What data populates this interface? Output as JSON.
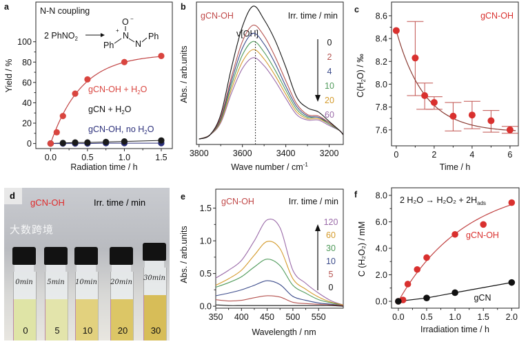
{
  "chart_data": [
    {
      "panel": "a",
      "type": "scatter",
      "title": "N-N coupling",
      "reaction": {
        "reactant": "2 PhNO",
        "reactant_sub": "2",
        "product_top": "O",
        "product_charge": "−",
        "product_plus": "+",
        "product_n1": "N",
        "product_n2": "N",
        "product_ph1": "Ph",
        "product_ph2": "Ph"
      },
      "xlabel": "Radiation time / h",
      "ylabel": "Yield / %",
      "xlim": [
        -0.2,
        1.65
      ],
      "ylim": [
        -5,
        139
      ],
      "xticks": [
        0,
        0.5,
        1.0,
        1.5
      ],
      "xtick_labels": [
        "0.0",
        "0.5",
        "1.0",
        "1.5"
      ],
      "yticks": [
        0,
        20,
        40,
        60,
        80,
        100
      ],
      "ytick_labels": [
        "0",
        "20",
        "40",
        "60",
        "80",
        "100"
      ],
      "series": [
        {
          "name": "gCN-OH + H2O",
          "label": "gCN-OH + H",
          "label_sub": "2",
          "label_end": "O",
          "color": "#d9453f",
          "x": [
            0,
            0.083,
            0.167,
            0.333,
            0.5,
            1.0,
            1.5
          ],
          "y": [
            0,
            11,
            27,
            49,
            63,
            80,
            86
          ],
          "fit": {
            "type": "exp_rise",
            "A": 88,
            "tau": 0.42
          }
        },
        {
          "name": "gCN + H2O",
          "label": "gCN + H",
          "label_sub": "2",
          "label_end": "O",
          "color": "#1a1a1a",
          "x": [
            0,
            0.167,
            0.333,
            0.5,
            0.75,
            1.0,
            1.5
          ],
          "y": [
            0,
            0.5,
            1,
            1,
            1.5,
            2,
            3
          ]
        },
        {
          "name": "gCN-OH, no H2O",
          "label": "gCN-OH, no H",
          "label_sub": "2",
          "label_end": "O",
          "color": "#2b2f7a",
          "x": [
            0,
            0.167,
            0.333,
            0.5,
            0.75,
            1.0,
            1.5
          ],
          "y": [
            0,
            0,
            0,
            0,
            0.3,
            0.3,
            0.3
          ]
        }
      ]
    },
    {
      "panel": "b",
      "type": "line",
      "sample": "gCN-OH",
      "legend_title": "Irr. time / min",
      "annotation": "ν[OH]",
      "xlabel": "Wave number / cm",
      "xlabel_sup": "-1",
      "ylabel": "Abs. / arb.units",
      "xlim": [
        3812,
        3135
      ],
      "ylim": [
        -0.02,
        1.03
      ],
      "xticks": [
        3800,
        3600,
        3400,
        3200
      ],
      "xtick_labels": [
        "3800",
        "3600",
        "3400",
        "3200"
      ],
      "peak_x": 3540,
      "x": [
        3800,
        3750,
        3700,
        3650,
        3600,
        3550,
        3500,
        3450,
        3400,
        3350,
        3300,
        3250,
        3200,
        3150,
        3100
      ],
      "series": [
        {
          "name": "0",
          "color": "#111111",
          "y": [
            0.02,
            0.05,
            0.2,
            0.55,
            0.85,
            1.0,
            0.9,
            0.75,
            0.55,
            0.33,
            0.25,
            0.22,
            0.15,
            0.08,
            0.05
          ]
        },
        {
          "name": "2",
          "color": "#b5524f",
          "y": [
            0.02,
            0.05,
            0.18,
            0.48,
            0.74,
            0.86,
            0.78,
            0.63,
            0.45,
            0.28,
            0.2,
            0.19,
            0.14,
            0.08,
            0.05
          ]
        },
        {
          "name": "4",
          "color": "#3a4a8a",
          "y": [
            0.02,
            0.05,
            0.17,
            0.45,
            0.69,
            0.8,
            0.72,
            0.58,
            0.41,
            0.26,
            0.19,
            0.18,
            0.14,
            0.08,
            0.05
          ]
        },
        {
          "name": "10",
          "color": "#4f9a5a",
          "y": [
            0.02,
            0.05,
            0.16,
            0.42,
            0.64,
            0.74,
            0.66,
            0.53,
            0.38,
            0.24,
            0.18,
            0.18,
            0.13,
            0.08,
            0.05
          ]
        },
        {
          "name": "20",
          "color": "#d49a2a",
          "y": [
            0.02,
            0.05,
            0.15,
            0.39,
            0.59,
            0.68,
            0.61,
            0.49,
            0.35,
            0.22,
            0.17,
            0.17,
            0.13,
            0.08,
            0.05
          ]
        },
        {
          "name": "60",
          "color": "#9a6aa8",
          "y": [
            0.02,
            0.05,
            0.14,
            0.36,
            0.54,
            0.62,
            0.56,
            0.45,
            0.32,
            0.2,
            0.16,
            0.16,
            0.12,
            0.08,
            0.05
          ]
        }
      ]
    },
    {
      "panel": "c",
      "type": "scatter",
      "sample": "gCN-OH",
      "xlabel": "Time / h",
      "ylabel": "C(H",
      "ylabel_sub": "2",
      "ylabel_end": "O) / ‰",
      "xlim": [
        -0.25,
        6.44
      ],
      "ylim": [
        7.46,
        8.72
      ],
      "xticks": [
        0,
        2,
        4,
        6
      ],
      "xtick_labels": [
        "0",
        "2",
        "4",
        "6"
      ],
      "yticks": [
        7.6,
        7.8,
        8.0,
        8.2,
        8.4,
        8.6
      ],
      "ytick_labels": [
        "7.6",
        "7.8",
        "8.0",
        "8.2",
        "8.4",
        "8.6"
      ],
      "color": "#d9302e",
      "x": [
        0,
        1,
        1.5,
        2,
        3,
        4,
        5,
        6
      ],
      "y": [
        8.47,
        8.23,
        7.9,
        7.84,
        7.72,
        7.73,
        7.68,
        7.6
      ],
      "err_high": [
        8.47,
        8.55,
        8.01,
        7.89,
        7.84,
        7.85,
        7.77,
        7.63
      ],
      "err_low": [
        8.47,
        7.9,
        7.78,
        7.78,
        7.59,
        7.61,
        7.58,
        7.57
      ],
      "fit": {
        "type": "exp_decay",
        "offset": 7.58,
        "A": 0.89,
        "tau": 1.5
      }
    },
    {
      "panel": "e",
      "type": "line",
      "sample": "gCN-OH",
      "legend_title": "Irr. time / min",
      "xlabel": "Wavelength / nm",
      "ylabel": "Abs. / arb.units",
      "xlim": [
        350,
        598
      ],
      "ylim": [
        -0.03,
        1.79
      ],
      "xticks": [
        350,
        400,
        450,
        500,
        550
      ],
      "xtick_labels": [
        "350",
        "400",
        "450",
        "500",
        "550"
      ],
      "yticks": [
        0,
        0.5,
        1.0,
        1.5
      ],
      "ytick_labels": [
        "0.0",
        "0.5",
        "1.0",
        "1.5"
      ],
      "x": [
        350,
        375,
        400,
        425,
        450,
        475,
        500,
        525,
        550,
        575,
        600
      ],
      "series": [
        {
          "name": "120",
          "color": "#9a6aa8",
          "y": [
            0.43,
            0.55,
            0.7,
            1.0,
            1.32,
            1.2,
            0.55,
            0.35,
            0.2,
            0.08,
            0.02
          ]
        },
        {
          "name": "60",
          "color": "#d49a2a",
          "y": [
            0.32,
            0.42,
            0.55,
            0.78,
            0.99,
            0.88,
            0.42,
            0.26,
            0.14,
            0.06,
            0.02
          ]
        },
        {
          "name": "30",
          "color": "#4f9a5a",
          "y": [
            0.29,
            0.36,
            0.45,
            0.6,
            0.72,
            0.62,
            0.32,
            0.2,
            0.1,
            0.05,
            0.01
          ]
        },
        {
          "name": "10",
          "color": "#3a4a8a",
          "y": [
            0.16,
            0.2,
            0.25,
            0.32,
            0.39,
            0.33,
            0.15,
            0.09,
            0.05,
            0.03,
            0.01
          ]
        },
        {
          "name": "5",
          "color": "#b5524f",
          "y": [
            0.1,
            0.08,
            0.09,
            0.13,
            0.16,
            0.14,
            0.06,
            0.04,
            0.03,
            0.02,
            0.01
          ]
        },
        {
          "name": "0",
          "color": "#111111",
          "y": [
            0.02,
            0.01,
            0.01,
            0.01,
            0.01,
            0.01,
            0.01,
            0.01,
            0.01,
            0.01,
            0.0
          ]
        }
      ]
    },
    {
      "panel": "f",
      "type": "scatter",
      "equation": "2 H₂O → H₂O₂ + 2H",
      "equation_sub": "ads",
      "xlabel": "Irradiation time / h",
      "ylabel": "C (H₂O₂) / mM",
      "xlim": [
        -0.12,
        2.13
      ],
      "ylim": [
        -0.52,
        8.57
      ],
      "xticks": [
        0,
        0.5,
        1.0,
        1.5,
        2.0
      ],
      "xtick_labels": [
        "0.0",
        "0.5",
        "1.0",
        "1.5",
        "2.0"
      ],
      "yticks": [
        0,
        2,
        4,
        6,
        8
      ],
      "ytick_labels": [
        "0.0",
        "2.0",
        "4.0",
        "6.0",
        "8.0"
      ],
      "series": [
        {
          "name": "gCN-OH",
          "color": "#d9302e",
          "x": [
            0,
            0.083,
            0.167,
            0.333,
            0.5,
            1.0,
            1.5,
            2.0
          ],
          "y": [
            0,
            0.1,
            1.3,
            2.4,
            3.3,
            5.05,
            5.8,
            7.45
          ],
          "fit": {
            "type": "exp_rise",
            "A": 9,
            "tau": 1.2
          }
        },
        {
          "name": "gCN",
          "color": "#111111",
          "x": [
            0,
            0.5,
            1.0,
            2.0
          ],
          "y": [
            0,
            0.25,
            0.65,
            1.42
          ],
          "fit": {
            "type": "connect"
          }
        }
      ]
    }
  ],
  "panel_letters": {
    "a": "a",
    "b": "b",
    "c": "c",
    "d": "d",
    "e": "e",
    "f": "f"
  },
  "photo": {
    "sample": "gCN-OH",
    "legend_title": "Irr. time / min",
    "vials": [
      {
        "label": "0",
        "handwriting": "0min",
        "liquid": "#dfe4a6"
      },
      {
        "label": "5",
        "handwriting": "5min",
        "liquid": "#e3e4ab"
      },
      {
        "label": "10",
        "handwriting": "10min",
        "liquid": "#e2d17e"
      },
      {
        "label": "20",
        "handwriting": "20min",
        "liquid": "#dcc666"
      },
      {
        "label": "30",
        "handwriting": "30min",
        "liquid": "#d7bd58"
      }
    ],
    "watermark": "大数跨境"
  }
}
